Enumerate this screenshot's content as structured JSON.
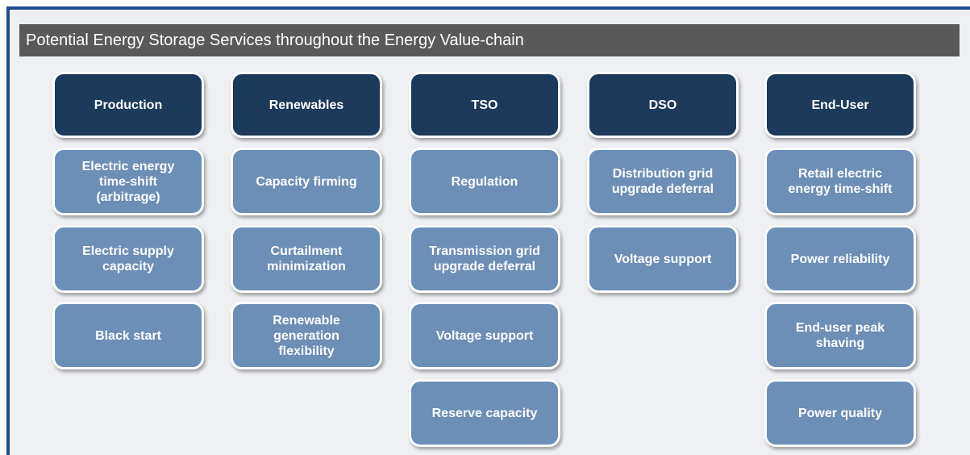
{
  "title": "Potential Energy Storage Services throughout the Energy Value-chain",
  "columns": [
    {
      "header": "Production",
      "items": [
        "Electric energy time-shift (arbitrage)",
        "Electric supply capacity",
        "Black start"
      ]
    },
    {
      "header": "Renewables",
      "items": [
        "Capacity firming",
        "Curtailment minimization",
        "Renewable generation flexibility"
      ]
    },
    {
      "header": "TSO",
      "items": [
        "Regulation",
        "Transmission grid upgrade deferral",
        "Voltage support",
        "Reserve capacity"
      ]
    },
    {
      "header": "DSO",
      "items": [
        "Distribution grid upgrade deferral",
        "Voltage support"
      ]
    },
    {
      "header": "End-User",
      "items": [
        "Retail electric energy time-shift",
        "Power reliability",
        "End-user peak shaving",
        "Power quality"
      ]
    }
  ]
}
